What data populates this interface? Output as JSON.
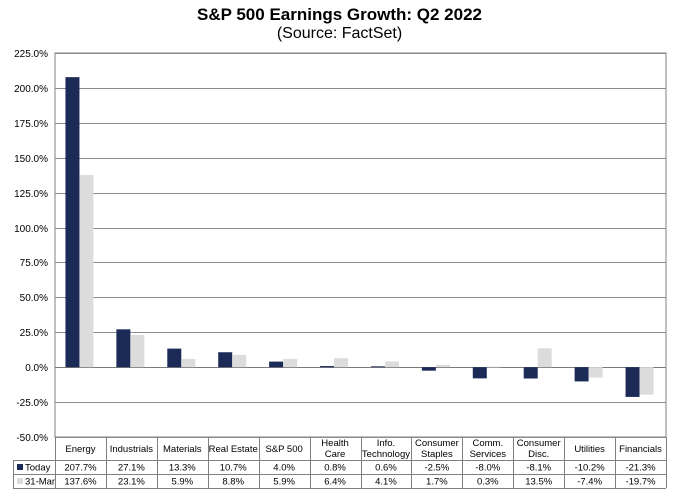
{
  "chart_data": {
    "type": "bar",
    "title": "S&P 500 Earnings Growth: Q2 2022",
    "subtitle": "(Source: FactSet)",
    "categories": [
      [
        "Energy"
      ],
      [
        "Industrials"
      ],
      [
        "Materials"
      ],
      [
        "Real Estate"
      ],
      [
        "S&P 500"
      ],
      [
        "Health",
        "Care"
      ],
      [
        "Info.",
        "Technology"
      ],
      [
        "Consumer",
        "Staples"
      ],
      [
        "Comm.",
        "Services"
      ],
      [
        "Consumer",
        "Disc."
      ],
      [
        "Utilities"
      ],
      [
        "Financials"
      ]
    ],
    "series": [
      {
        "name": "Today",
        "color": "#1b2a57",
        "values": [
          207.7,
          27.1,
          13.3,
          10.7,
          4.0,
          0.8,
          0.6,
          -2.5,
          -8.0,
          -8.1,
          -10.2,
          -21.3
        ],
        "labels": [
          "207.7%",
          "27.1%",
          "13.3%",
          "10.7%",
          "4.0%",
          "0.8%",
          "0.6%",
          "-2.5%",
          "-8.0%",
          "-8.1%",
          "-10.2%",
          "-21.3%"
        ]
      },
      {
        "name": "31-Mar",
        "color": "#dcdcdc",
        "values": [
          137.6,
          23.1,
          5.9,
          8.8,
          5.9,
          6.4,
          4.1,
          1.7,
          0.3,
          13.5,
          -7.4,
          -19.7
        ],
        "labels": [
          "137.6%",
          "23.1%",
          "5.9%",
          "8.8%",
          "5.9%",
          "6.4%",
          "4.1%",
          "1.7%",
          "0.3%",
          "13.5%",
          "-7.4%",
          "-19.7%"
        ]
      }
    ],
    "ylim": [
      -50,
      225
    ],
    "yticks": [
      225,
      200,
      175,
      150,
      125,
      100,
      75,
      50,
      25,
      0,
      -25,
      -50
    ],
    "ytick_labels": [
      "225.0%",
      "200.0%",
      "175.0%",
      "150.0%",
      "125.0%",
      "100.0%",
      "75.0%",
      "50.0%",
      "25.0%",
      "0.0%",
      "-25.0%",
      "-50.0%"
    ],
    "grid": true,
    "legend": "data-table"
  }
}
